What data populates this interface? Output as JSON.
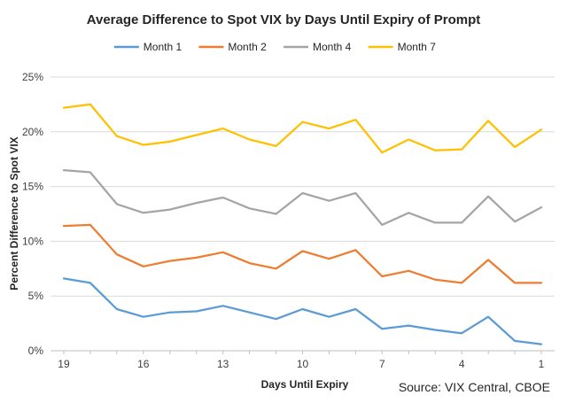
{
  "chart_data": {
    "type": "line",
    "title": "Average Difference to Spot VIX by Days Until Expiry of Prompt",
    "xlabel": "Days Until Expiry",
    "ylabel": "Percent Difference to Spot VIX",
    "source_note": "Source: VIX Central, CBOE",
    "x": [
      19,
      18,
      17,
      16,
      15,
      14,
      13,
      12,
      11,
      10,
      9,
      8,
      7,
      6,
      5,
      4,
      3,
      2,
      1
    ],
    "x_tick_labels": [
      "19",
      "16",
      "13",
      "10",
      "7",
      "4",
      "1"
    ],
    "x_tick_values": [
      19,
      16,
      13,
      10,
      7,
      4,
      1
    ],
    "x_reversed": true,
    "ylim": [
      0,
      25
    ],
    "y_tick_labels": [
      "0%",
      "5%",
      "10%",
      "15%",
      "20%",
      "25%"
    ],
    "y_tick_values": [
      0,
      5,
      10,
      15,
      20,
      25
    ],
    "legend_position": "top",
    "grid": true,
    "series": [
      {
        "name": "Month 1",
        "color": "#5b9bd5",
        "values": [
          6.6,
          6.2,
          3.8,
          3.1,
          3.5,
          3.6,
          4.1,
          3.5,
          2.9,
          3.8,
          3.1,
          3.8,
          2.0,
          2.3,
          1.9,
          1.6,
          3.1,
          0.9,
          0.6
        ]
      },
      {
        "name": "Month 2",
        "color": "#ed7d31",
        "values": [
          11.4,
          11.5,
          8.8,
          7.7,
          8.2,
          8.5,
          9.0,
          8.0,
          7.5,
          9.1,
          8.4,
          9.2,
          6.8,
          7.3,
          6.5,
          6.2,
          8.3,
          6.2,
          6.2
        ]
      },
      {
        "name": "Month 4",
        "color": "#a5a5a5",
        "values": [
          16.5,
          16.3,
          13.4,
          12.6,
          12.9,
          13.5,
          14.0,
          13.0,
          12.5,
          14.4,
          13.7,
          14.4,
          11.5,
          12.6,
          11.7,
          11.7,
          14.1,
          11.8,
          13.1
        ]
      },
      {
        "name": "Month 7",
        "color": "#ffc000",
        "values": [
          22.2,
          22.5,
          19.6,
          18.8,
          19.1,
          19.7,
          20.3,
          19.3,
          18.7,
          20.9,
          20.3,
          21.1,
          18.1,
          19.3,
          18.3,
          18.4,
          21.0,
          18.6,
          20.2
        ]
      }
    ]
  }
}
